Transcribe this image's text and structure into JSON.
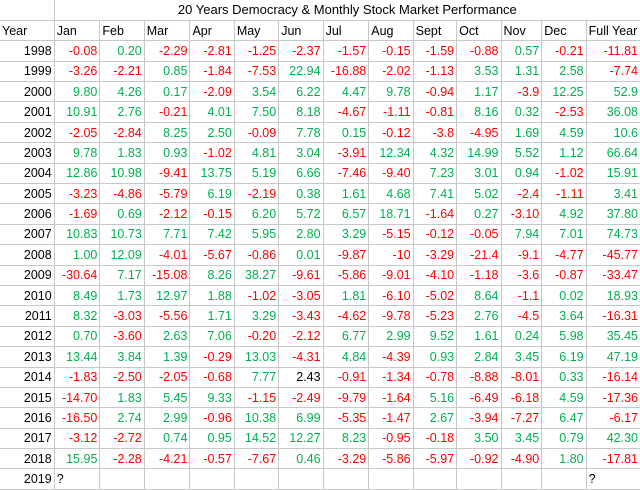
{
  "title": "20 Years Democracy & Monthly Stock Market Performance",
  "headers": [
    "Year",
    "Jan",
    "Feb",
    "Mar",
    "Apr",
    "May",
    "Jun",
    "Jul",
    "Aug",
    "Sept",
    "Oct",
    "Nov",
    "Dec",
    "Full Year"
  ],
  "colors": {
    "negative": "#ff0000",
    "positive": "#00b050",
    "neutral": "#000000"
  },
  "rows": [
    {
      "year": "1998",
      "values": [
        "-0.08",
        "0.20",
        "-2.29",
        "-2.81",
        "-1.25",
        "-2.37",
        "-1.57",
        "-0.15",
        "-1.59",
        "-0.88",
        "0.57",
        "-0.21",
        "-11.81"
      ]
    },
    {
      "year": "1999",
      "values": [
        "-3.26",
        "-2.21",
        "0.85",
        "-1.84",
        "-7.53",
        "22.94",
        "-16.88",
        "-2.02",
        "-1.13",
        "3.53",
        "1.31",
        "2.58",
        "-7.74"
      ]
    },
    {
      "year": "2000",
      "values": [
        "9.80",
        "4.26",
        "0.17",
        "-2.09",
        "3.54",
        "6.22",
        "4.47",
        "9.78",
        "-0.94",
        "1.17",
        "-3.9",
        "12.25",
        "52.9"
      ]
    },
    {
      "year": "2001",
      "values": [
        "10.91",
        "2.76",
        "-0.21",
        "4.01",
        "7.50",
        "8.18",
        "-4.67",
        "-1.11",
        "-0.81",
        "8.16",
        "0.32",
        "-2.53",
        "36.08"
      ]
    },
    {
      "year": "2002",
      "values": [
        "-2.05",
        "-2.84",
        "8.25",
        "2.50",
        "-0.09",
        "7.78",
        "0.15",
        "-0.12",
        "-3.8",
        "-4.95",
        "1.69",
        "4.59",
        "10.6"
      ]
    },
    {
      "year": "2003",
      "values": [
        "9.78",
        "1.83",
        "0.93",
        "-1.02",
        "4.81",
        "3.04",
        "-3.91",
        "12.34",
        "4.32",
        "14.99",
        "5.52",
        "1.12",
        "66.64"
      ]
    },
    {
      "year": "2004",
      "values": [
        "12.86",
        "10.98",
        "-9.41",
        "13.75",
        "5.19",
        "6.66",
        "-7.46",
        "-9.40",
        "7.23",
        "3.01",
        "0.94",
        "-1.02",
        "15.91"
      ]
    },
    {
      "year": "2005",
      "values": [
        "-3.23",
        "-4.86",
        "-5.79",
        "6.19",
        "-2.19",
        "0.38",
        "1.61",
        "4.68",
        "7.41",
        "5.02",
        "-2.4",
        "-1.11",
        "3.41"
      ]
    },
    {
      "year": "2006",
      "values": [
        "-1.69",
        "0.69",
        "-2.12",
        "-0.15",
        "6.20",
        "5.72",
        "6.57",
        "18.71",
        "-1.64",
        "0.27",
        "-3.10",
        "4.92",
        "37.80"
      ]
    },
    {
      "year": "2007",
      "values": [
        "10.83",
        "10.73",
        "7.71",
        "7.42",
        "5.95",
        "2.80",
        "3.29",
        "-5.15",
        "-0.12",
        "-0.05",
        "7.94",
        "7.01",
        "74.73"
      ]
    },
    {
      "year": "2008",
      "values": [
        "1.00",
        "12.09",
        "-4.01",
        "-5.67",
        "-0.86",
        "0.01",
        "-9.87",
        "-10",
        "-3.29",
        "-21.4",
        "-9.1",
        "-4.77",
        "-45.77"
      ]
    },
    {
      "year": "2009",
      "values": [
        "-30.64",
        "7.17",
        "-15.08",
        "8.26",
        "38.27",
        "-9.61",
        "-5.86",
        "-9.01",
        "-4.10",
        "-1.18",
        "-3.6",
        "-0.87",
        "-33.47"
      ]
    },
    {
      "year": "2010",
      "values": [
        "8.49",
        "1.73",
        "12.97",
        "1.88",
        "-1.02",
        "-3.05",
        "1.81",
        "-6.10",
        "-5.02",
        "8.64",
        "-1.1",
        "0.02",
        "18.93"
      ]
    },
    {
      "year": "2011",
      "values": [
        "8.32",
        "-3.03",
        "-5.56",
        "1.71",
        "3.29",
        "-3.43",
        "-4.62",
        "-9.78",
        "-5.23",
        "2.76",
        "-4.5",
        "3.64",
        "-16.31"
      ]
    },
    {
      "year": "2012",
      "values": [
        "0.70",
        "-3.60",
        "2.63",
        "7.06",
        "-0.20",
        "-2.12",
        "6.77",
        "2.99",
        "9.52",
        "1.61",
        "0.24",
        "5.98",
        "35.45"
      ]
    },
    {
      "year": "2013",
      "values": [
        "13.44",
        "3.84",
        "1.39",
        "-0.29",
        "13.03",
        "-4.31",
        "4.84",
        "-4.39",
        "0.93",
        "2.84",
        "3.45",
        "6.19",
        "47.19"
      ]
    },
    {
      "year": "2014",
      "values": [
        "-1.83",
        "-2.50",
        "-2.05",
        "-0.68",
        "7.77",
        "2.43",
        "-0.91",
        "-1.34",
        "-0.78",
        "-8.88",
        "-8.01",
        "0.33",
        "-16.14"
      ]
    },
    {
      "year": "2015",
      "values": [
        "-14.70",
        "1.83",
        "5.45",
        "9.33",
        "-1.15",
        "-2.49",
        "-9.79",
        "-1.64",
        "5.16",
        "-6.49",
        "-6.18",
        "4.59",
        "-17.36"
      ]
    },
    {
      "year": "2016",
      "values": [
        "-16.50",
        "2.74",
        "2.99",
        "-0.96",
        "10.38",
        "6.99",
        "-5.35",
        "-1.47",
        "2.67",
        "-3.94",
        "-7.27",
        "6.47",
        "-6.17"
      ]
    },
    {
      "year": "2017",
      "values": [
        "-3.12",
        "-2.72",
        "0.74",
        "0.95",
        "14.52",
        "12.27",
        "8.23",
        "-0.95",
        "-0.18",
        "3.50",
        "3.45",
        "0.79",
        "42.30"
      ]
    },
    {
      "year": "2018",
      "values": [
        "15.95",
        "-2.28",
        "-4.21",
        "-0.57",
        "-7.67",
        "0.46",
        "-3.29",
        "-5.86",
        "-5.97",
        "-0.92",
        "-4.90",
        "1.80",
        "-17.81"
      ]
    },
    {
      "year": "2019",
      "values": [
        "?",
        "",
        "",
        "",
        "",
        "",
        "",
        "",
        "",
        "",
        "",
        "",
        "?"
      ]
    }
  ]
}
